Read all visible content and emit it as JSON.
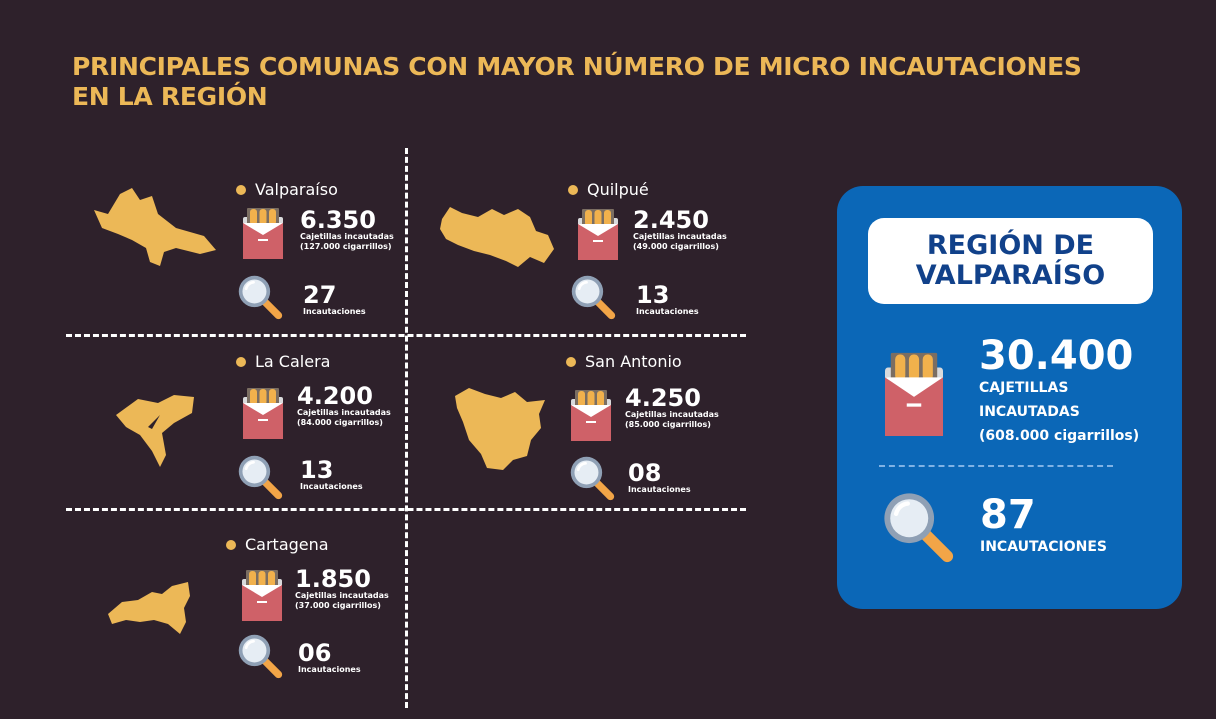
{
  "title": {
    "line1": "PRINCIPALES COMUNAS CON MAYOR NÚMERO DE MICRO INCAUTACIONES",
    "line2": "EN LA REGIÓN"
  },
  "communes": [
    {
      "name": "Valparaíso",
      "packs": "6.350",
      "packs_label": "Cajetillas incautadas",
      "cigarettes": "(127.000 cigarrillos)",
      "seizures": "27",
      "seizures_label": "Incautaciones"
    },
    {
      "name": "Quilpué",
      "packs": "2.450",
      "packs_label": "Cajetillas incautadas",
      "cigarettes": "(49.000 cigarrillos)",
      "seizures": "13",
      "seizures_label": "Incautaciones"
    },
    {
      "name": "La Calera",
      "packs": "4.200",
      "packs_label": "Cajetillas incautadas",
      "cigarettes": "(84.000 cigarrillos)",
      "seizures": "13",
      "seizures_label": "Incautaciones"
    },
    {
      "name": "San Antonio",
      "packs": "4.250",
      "packs_label": "Cajetillas incautadas",
      "cigarettes": "(85.000 cigarrillos)",
      "seizures": "08",
      "seizures_label": "Incautaciones"
    },
    {
      "name": "Cartagena",
      "packs": "1.850",
      "packs_label": "Cajetillas incautadas",
      "cigarettes": "(37.000 cigarrillos)",
      "seizures": "06",
      "seizures_label": "Incautaciones"
    }
  ],
  "region": {
    "title_line1": "REGIÓN DE",
    "title_line2": "VALPARAÍSO",
    "packs": "30.400",
    "packs_label_line1": "CAJETILLAS",
    "packs_label_line2": "INCAUTADAS",
    "cigarettes": "(608.000 cigarrillos)",
    "seizures": "87",
    "seizures_label": "INCAUTACIONES"
  },
  "colors": {
    "background": "#2e212b",
    "accent": "#ecb857",
    "card": "#0b67b7",
    "card_title_text": "#11418a"
  },
  "icons": [
    "cigarette-pack-icon",
    "magnifier-icon",
    "commune-map-shape"
  ]
}
